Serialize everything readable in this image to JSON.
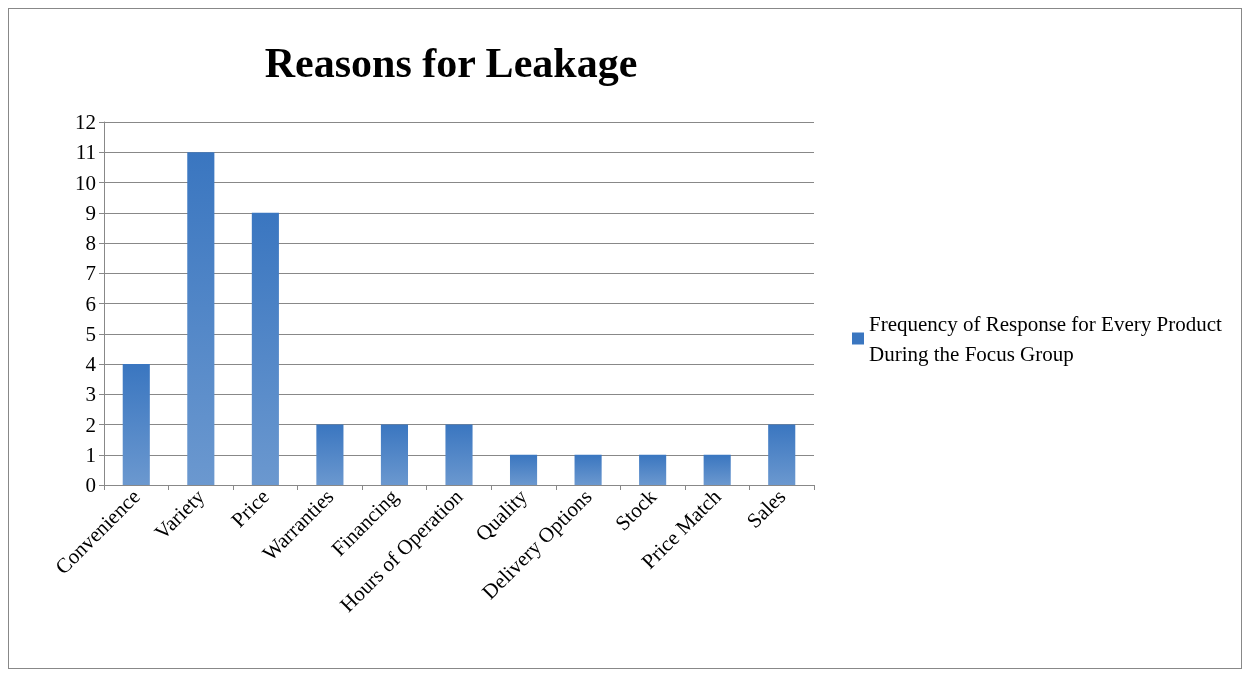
{
  "chart_data": {
    "type": "bar",
    "title": "Reasons for Leakage",
    "categories": [
      "Convenience",
      "Variety",
      "Price",
      "Warranties",
      "Financing",
      "Hours of Operation",
      "Quality",
      "Delivery Options",
      "Stock",
      "Price Match",
      "Sales"
    ],
    "series": [
      {
        "name": "Frequency of Response for Every Product During the Focus Group",
        "color": "#3a76c0",
        "values": [
          4,
          11,
          9,
          2,
          2,
          2,
          1,
          1,
          1,
          1,
          2
        ]
      }
    ],
    "ylim": [
      0,
      12
    ],
    "yticks": [
      0,
      1,
      2,
      3,
      4,
      5,
      6,
      7,
      8,
      9,
      10,
      11,
      12
    ],
    "grid": "y",
    "legend": "right"
  }
}
